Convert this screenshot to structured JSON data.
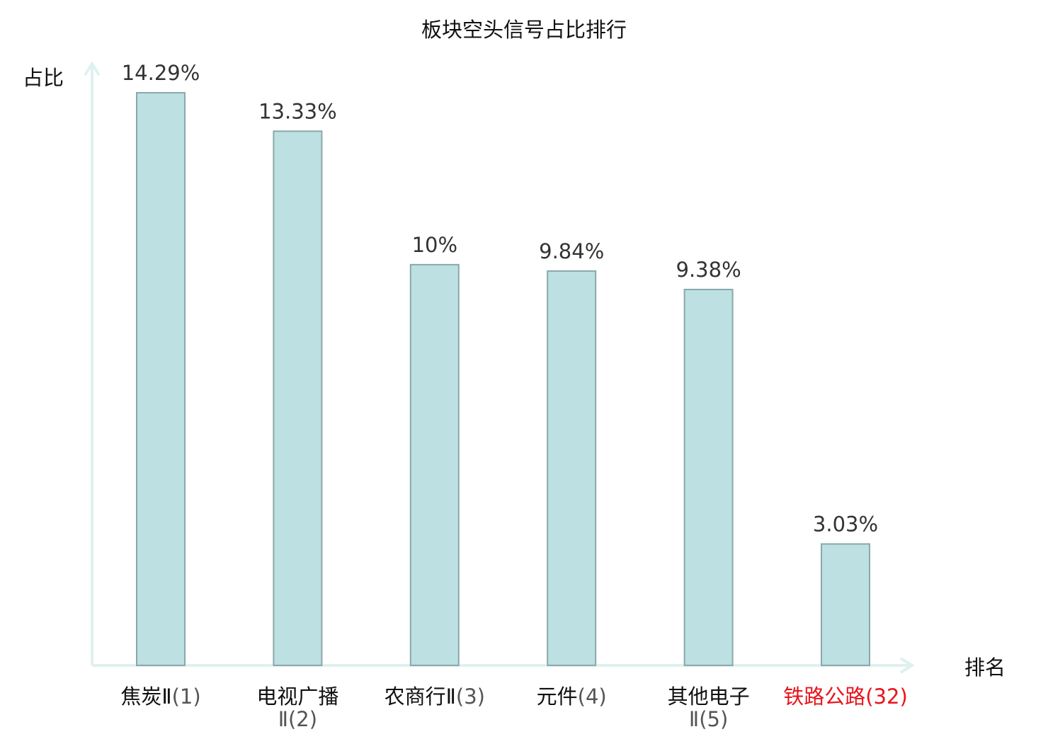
{
  "chart_data": {
    "type": "bar",
    "title": "板块空头信号占比排行",
    "xlabel": "排名",
    "ylabel": "占比",
    "ylim": [
      0,
      15.5
    ],
    "grid": false,
    "legend": "none",
    "categories": [
      {
        "name": "焦炭Ⅱ",
        "rank": "(1)",
        "highlight": false
      },
      {
        "name": "电视广播",
        "name2": "Ⅱ",
        "rank": "(2)",
        "highlight": false
      },
      {
        "name": "农商行Ⅱ",
        "rank": "(3)",
        "highlight": false
      },
      {
        "name": "元件",
        "rank": "(4)",
        "highlight": false
      },
      {
        "name": "其他电子",
        "name2": "Ⅱ",
        "rank": "(5)",
        "highlight": false
      },
      {
        "name": "铁路公路",
        "rank": "(32)",
        "highlight": true
      }
    ],
    "values": [
      14.29,
      13.33,
      10,
      9.84,
      9.38,
      3.03
    ],
    "labels": [
      "14.29%",
      "13.33%",
      "10%",
      "9.84%",
      "9.38%",
      "3.03%"
    ],
    "colors": {
      "bar_fill": "#bde0e3",
      "bar_stroke": "#8aa8aa",
      "axis": "#dff1ef",
      "text": "#111111",
      "value_text": "#333333",
      "rank_text": "#555555",
      "highlight": "#e8141c"
    }
  }
}
